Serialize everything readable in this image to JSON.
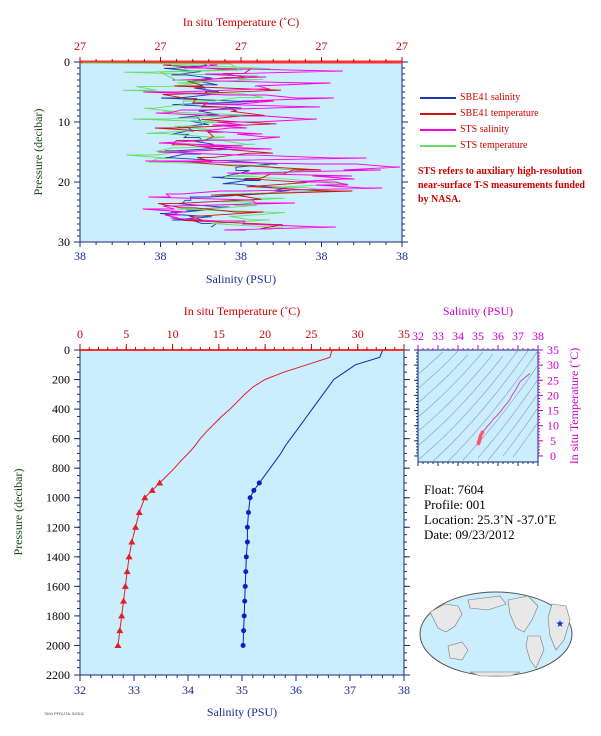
{
  "chart_data": [
    {
      "type": "line",
      "top_axis_label": "In situ Temperature (˚C)",
      "top_ticks": [
        "27",
        "27",
        "27",
        "27",
        "27"
      ],
      "bottom_axis_label": "Salinity (PSU)",
      "bottom_ticks": [
        "38",
        "38",
        "38",
        "38",
        "38"
      ],
      "ylabel": "Pressure (decibar)",
      "y_ticks": [
        0,
        10,
        20,
        30
      ],
      "ylim": [
        0,
        30
      ],
      "legend": [
        {
          "name": "SBE41 salinity",
          "color": "#1a3aaa"
        },
        {
          "name": "SBE41 temperature",
          "color": "#cc1111"
        },
        {
          "name": "STS salinity",
          "color": "#ff00dd"
        },
        {
          "name": "STS temperature",
          "color": "#66dd66"
        }
      ],
      "note": "STS refers to auxiliary high-resolution near-surface T-S measurements funded by NASA."
    },
    {
      "type": "line",
      "top_axis_label": "In situ Temperature (˚C)",
      "top_ticks": [
        0,
        5,
        10,
        15,
        20,
        25,
        30,
        35
      ],
      "xlim_temp": [
        0,
        35
      ],
      "bottom_axis_label": "Salinity (PSU)",
      "bottom_ticks": [
        32,
        33,
        34,
        35,
        36,
        37,
        38
      ],
      "xlim_sal": [
        32,
        38
      ],
      "ylabel": "Pressure (decibar)",
      "y_ticks": [
        0,
        200,
        400,
        600,
        800,
        1000,
        1200,
        1400,
        1600,
        1800,
        2000,
        2200
      ],
      "ylim": [
        0,
        2200
      ],
      "series": [
        {
          "var": "temperature",
          "color": "#e02020",
          "pressure": [
            5,
            50,
            100,
            150,
            200,
            250,
            300,
            350,
            400,
            450,
            500,
            550,
            600,
            650,
            700,
            750,
            800,
            850,
            900,
            950,
            1000,
            1100,
            1200,
            1300,
            1400,
            1500,
            1600,
            1700,
            1800,
            1900,
            2000
          ],
          "values": [
            27.2,
            27.0,
            24.5,
            22.0,
            20.0,
            18.7,
            17.8,
            17.0,
            16.2,
            15.3,
            14.5,
            13.7,
            13.0,
            12.4,
            11.7,
            10.9,
            10.2,
            9.4,
            8.6,
            7.8,
            7.0,
            6.4,
            6.0,
            5.6,
            5.3,
            5.1,
            4.9,
            4.7,
            4.5,
            4.3,
            4.1
          ]
        },
        {
          "var": "salinity",
          "color": "#1020c0",
          "pressure": [
            5,
            50,
            100,
            150,
            200,
            250,
            300,
            350,
            400,
            450,
            500,
            550,
            600,
            650,
            700,
            750,
            800,
            850,
            900,
            950,
            1000,
            1100,
            1200,
            1300,
            1400,
            1500,
            1600,
            1700,
            1800,
            1900,
            2000
          ],
          "values": [
            37.6,
            37.55,
            37.1,
            36.9,
            36.7,
            36.6,
            36.5,
            36.4,
            36.3,
            36.2,
            36.1,
            36.0,
            35.9,
            35.8,
            35.72,
            35.62,
            35.52,
            35.42,
            35.32,
            35.22,
            35.15,
            35.12,
            35.1,
            35.1,
            35.08,
            35.07,
            35.06,
            35.05,
            35.04,
            35.03,
            35.02
          ]
        }
      ]
    },
    {
      "type": "scatter",
      "top_axis_label": "Salinity (PSU)",
      "top_ticks": [
        32,
        33,
        34,
        35,
        36,
        37,
        38
      ],
      "right_axis_label": "In situ Temperature (˚C)",
      "right_ticks": [
        0,
        5,
        10,
        15,
        20,
        25,
        30,
        35
      ],
      "xlim": [
        32,
        38
      ],
      "ylim": [
        -2,
        35
      ]
    }
  ],
  "float_info": {
    "float": "Float:  7604",
    "profile": "Profile:  001",
    "location": "Location:  25.3˚N  -37.0˚E",
    "date": "Date:  09/23/2012"
  },
  "footer": "7604 PFD\\JTA: 5/2011"
}
